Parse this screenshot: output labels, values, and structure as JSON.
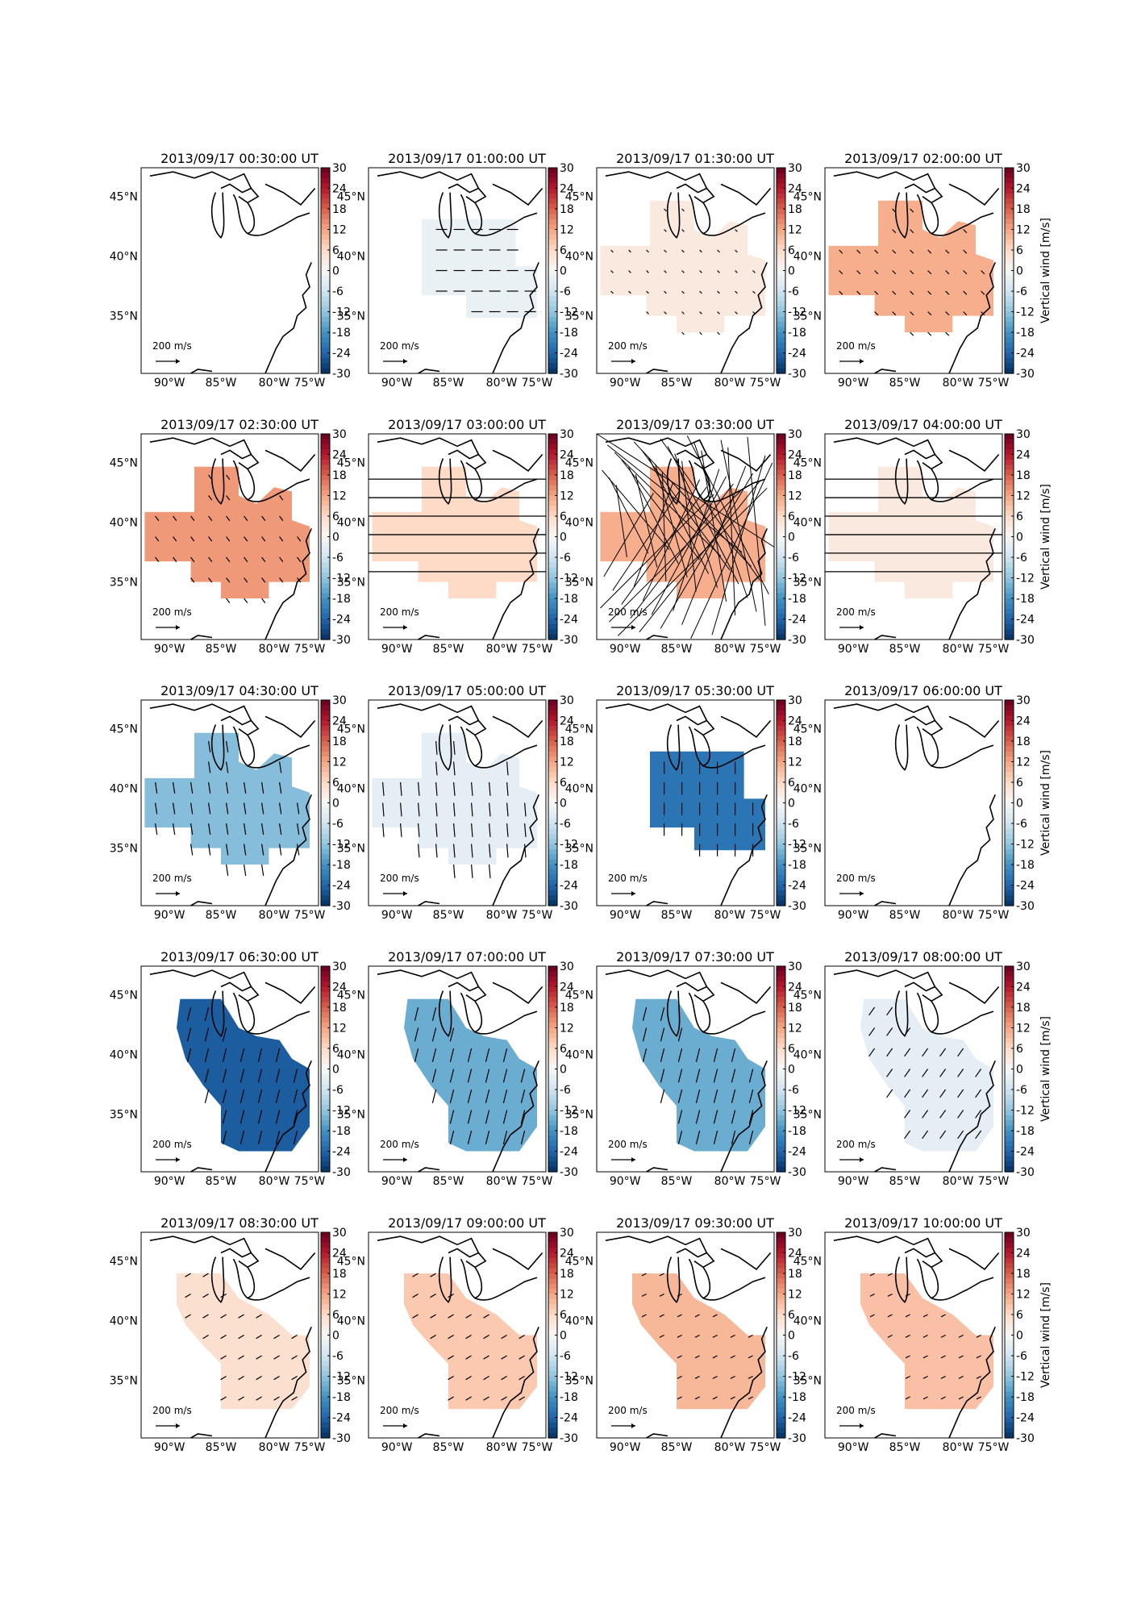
{
  "figure": {
    "colorbar_label": "Vertical wind [m/s]",
    "colorbar_ticks": [
      "30",
      "24",
      "18",
      "12",
      "6",
      "0",
      "-6",
      "-12",
      "-18",
      "-24",
      "-30"
    ],
    "lat_labels": [
      "45°N",
      "40°N",
      "35°N"
    ],
    "lon_labels": [
      "90°W",
      "85°W",
      "80°W",
      "75°W"
    ],
    "scale_label": "200 m/s",
    "colormap": [
      "#053061",
      "#2166ac",
      "#4393c3",
      "#92c5de",
      "#d1e5f0",
      "#f7f7f7",
      "#fddbc7",
      "#f4a582",
      "#d6604d",
      "#b2182b",
      "#67001f"
    ]
  },
  "chart_data": [
    {
      "type": "heatmap",
      "title": "2013/09/17 00:30:00 UT",
      "value": null,
      "region": "none",
      "arrow": null,
      "lines": 0
    },
    {
      "type": "heatmap",
      "title": "2013/09/17 01:00:00 UT",
      "value": -2,
      "region": "north",
      "arrow": [
        1.0,
        0.0
      ],
      "lines": 0
    },
    {
      "type": "heatmap",
      "title": "2013/09/17 01:30:00 UT",
      "value": 3,
      "region": "wide",
      "arrow": [
        0.2,
        0.2
      ],
      "lines": 0
    },
    {
      "type": "heatmap",
      "title": "2013/09/17 02:00:00 UT",
      "value": 11,
      "region": "wide",
      "arrow": [
        0.3,
        0.3
      ],
      "lines": 0
    },
    {
      "type": "heatmap",
      "title": "2013/09/17 02:30:00 UT",
      "value": 13,
      "region": "wide",
      "arrow": [
        0.3,
        0.4
      ],
      "lines": 0
    },
    {
      "type": "heatmap",
      "title": "2013/09/17 03:00:00 UT",
      "value": 6,
      "region": "wide",
      "arrow": null,
      "lines": 6
    },
    {
      "type": "heatmap",
      "title": "2013/09/17 03:30:00 UT",
      "value": 11,
      "region": "wide",
      "arrow": null,
      "lines": 40
    },
    {
      "type": "heatmap",
      "title": "2013/09/17 04:00:00 UT",
      "value": 3,
      "region": "wide",
      "arrow": null,
      "lines": 6
    },
    {
      "type": "heatmap",
      "title": "2013/09/17 04:30:00 UT",
      "value": -13,
      "region": "wide",
      "arrow": [
        0.15,
        1.0
      ],
      "lines": 0
    },
    {
      "type": "heatmap",
      "title": "2013/09/17 05:00:00 UT",
      "value": -3,
      "region": "wide",
      "arrow": [
        0.1,
        1.2
      ],
      "lines": 0
    },
    {
      "type": "heatmap",
      "title": "2013/09/17 05:30:00 UT",
      "value": -22,
      "region": "north",
      "arrow": [
        0.0,
        1.1
      ],
      "lines": 0
    },
    {
      "type": "heatmap",
      "title": "2013/09/17 06:00:00 UT",
      "value": null,
      "region": "none",
      "arrow": null,
      "lines": 0
    },
    {
      "type": "heatmap",
      "title": "2013/09/17 06:30:00 UT",
      "value": -25,
      "region": "diag",
      "arrow": [
        -0.3,
        1.2
      ],
      "lines": 0
    },
    {
      "type": "heatmap",
      "title": "2013/09/17 07:00:00 UT",
      "value": -15,
      "region": "diag",
      "arrow": [
        -0.3,
        1.2
      ],
      "lines": 0
    },
    {
      "type": "heatmap",
      "title": "2013/09/17 07:30:00 UT",
      "value": -15,
      "region": "diag",
      "arrow": [
        -0.3,
        1.2
      ],
      "lines": 0
    },
    {
      "type": "heatmap",
      "title": "2013/09/17 08:00:00 UT",
      "value": -3,
      "region": "diag",
      "arrow": [
        -0.5,
        0.7
      ],
      "lines": 0
    },
    {
      "type": "heatmap",
      "title": "2013/09/17 08:30:00 UT",
      "value": 5,
      "region": "south",
      "arrow": [
        -0.5,
        0.3
      ],
      "lines": 0
    },
    {
      "type": "heatmap",
      "title": "2013/09/17 09:00:00 UT",
      "value": 8,
      "region": "south",
      "arrow": [
        -0.5,
        0.3
      ],
      "lines": 0
    },
    {
      "type": "heatmap",
      "title": "2013/09/17 09:30:00 UT",
      "value": 10,
      "region": "south",
      "arrow": [
        -0.4,
        0.2
      ],
      "lines": 0
    },
    {
      "type": "heatmap",
      "title": "2013/09/17 10:00:00 UT",
      "value": 9,
      "region": "south",
      "arrow": [
        -0.4,
        0.2
      ],
      "lines": 0
    }
  ]
}
